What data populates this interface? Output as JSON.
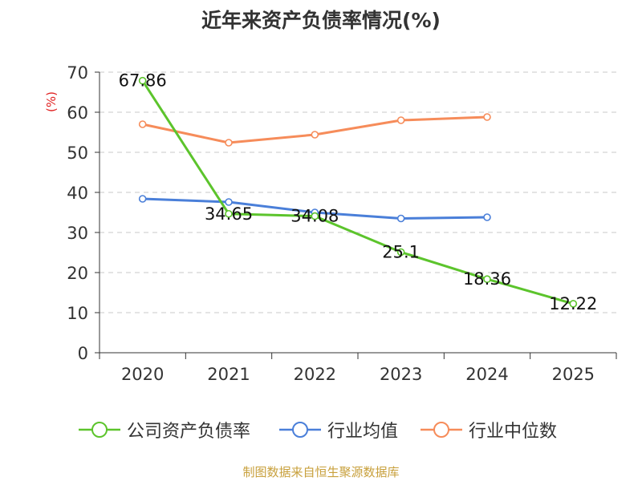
{
  "chart_data": {
    "type": "line",
    "title": "近年来资产负债率情况(%)",
    "ylabel": "(%)",
    "xlabel": "",
    "ylim": [
      0,
      70
    ],
    "yticks": [
      0,
      10,
      20,
      30,
      40,
      50,
      60,
      70
    ],
    "categories": [
      "2020",
      "2021",
      "2022",
      "2023",
      "2024",
      "2025"
    ],
    "grid": true,
    "legend_position": "bottom",
    "series": [
      {
        "name": "公司资产负债率",
        "color": "#5cc42c",
        "values": [
          67.86,
          34.65,
          34.08,
          25.1,
          18.36,
          12.22
        ],
        "data_labels": [
          "67.86",
          "34.65",
          "34.08",
          "25.1",
          "18.36",
          "12.22"
        ]
      },
      {
        "name": "行业均值",
        "color": "#4a7fd9",
        "values": [
          38.4,
          37.6,
          35.0,
          33.5,
          33.8,
          null
        ],
        "data_labels": []
      },
      {
        "name": "行业中位数",
        "color": "#f68c5a",
        "values": [
          57.0,
          52.4,
          54.4,
          58.0,
          58.8,
          null
        ],
        "data_labels": []
      }
    ]
  },
  "source": "制图数据来自恒生聚源数据库"
}
